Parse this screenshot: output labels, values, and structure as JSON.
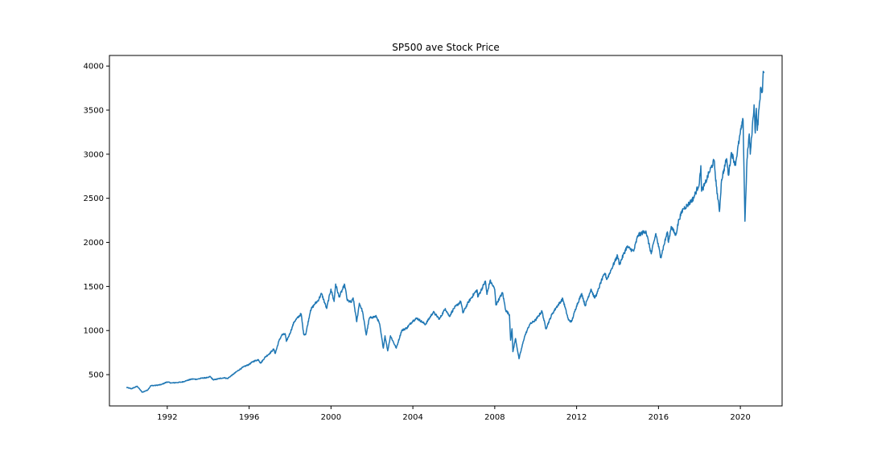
{
  "chart_data": {
    "type": "line",
    "title": "SP500 ave Stock Price",
    "xlabel": "",
    "ylabel": "",
    "xlim": [
      "1989-03-05",
      "2022-01-15"
    ],
    "ylim": [
      145,
      4120
    ],
    "x_ticks": [
      "1992",
      "1996",
      "2000",
      "2004",
      "2008",
      "2012",
      "2016",
      "2020"
    ],
    "y_ticks": [
      500,
      1000,
      1500,
      2000,
      2500,
      3000,
      3500,
      4000
    ],
    "grid": false,
    "legend": "none",
    "colors": {
      "line": "#1f77b4",
      "axes": "#000000",
      "background": "#ffffff"
    },
    "series": [
      {
        "x": [
          "1990-01-02",
          "1990-04-01",
          "1990-07-15",
          "1990-10-11",
          "1991-01-15",
          "1991-03-15",
          "1991-06-15",
          "1991-09-15",
          "1991-12-30",
          "1992-03-15",
          "1992-06-15",
          "1992-09-15",
          "1992-12-31",
          "1993-03-15",
          "1993-06-15",
          "1993-09-15",
          "1993-12-31",
          "1994-02-01",
          "1994-04-04",
          "1994-07-15",
          "1994-10-15",
          "1994-12-09",
          "1995-03-15",
          "1995-06-15",
          "1995-09-15",
          "1995-12-31",
          "1996-03-15",
          "1996-06-15",
          "1996-07-24",
          "1996-10-15",
          "1996-12-31",
          "1997-03-15",
          "1997-04-11",
          "1997-06-15",
          "1997-08-06",
          "1997-10-07",
          "1997-10-27",
          "1997-12-31",
          "1998-03-15",
          "1998-07-17",
          "1998-08-31",
          "1998-10-08",
          "1998-12-31",
          "1999-03-15",
          "1999-05-15",
          "1999-07-16",
          "1999-10-15",
          "1999-12-31",
          "2000-02-25",
          "2000-03-24",
          "2000-05-24",
          "2000-09-01",
          "2000-10-18",
          "2000-12-31",
          "2001-01-30",
          "2001-04-04",
          "2001-05-21",
          "2001-07-15",
          "2001-09-21",
          "2001-11-15",
          "2001-12-31",
          "2002-03-19",
          "2002-05-15",
          "2002-07-23",
          "2002-08-22",
          "2002-10-09",
          "2002-11-27",
          "2003-03-11",
          "2003-06-15",
          "2003-09-15",
          "2003-12-31",
          "2004-03-15",
          "2004-08-12",
          "2004-12-31",
          "2005-04-20",
          "2005-08-01",
          "2005-10-13",
          "2005-12-31",
          "2006-05-05",
          "2006-06-13",
          "2006-09-15",
          "2006-12-31",
          "2007-02-20",
          "2007-03-05",
          "2007-07-19",
          "2007-08-15",
          "2007-10-09",
          "2007-12-31",
          "2008-01-22",
          "2008-05-19",
          "2008-07-15",
          "2008-09-19",
          "2008-10-10",
          "2008-11-04",
          "2008-11-20",
          "2009-01-06",
          "2009-03-09",
          "2009-06-15",
          "2009-09-15",
          "2009-12-31",
          "2010-04-23",
          "2010-07-02",
          "2010-10-15",
          "2010-12-31",
          "2011-04-29",
          "2011-08-08",
          "2011-10-03",
          "2011-12-31",
          "2012-04-02",
          "2012-06-01",
          "2012-09-14",
          "2012-11-15",
          "2012-12-31",
          "2013-03-15",
          "2013-05-21",
          "2013-06-24",
          "2013-09-15",
          "2013-12-31",
          "2014-02-03",
          "2014-06-15",
          "2014-10-15",
          "2014-12-31",
          "2015-05-21",
          "2015-08-25",
          "2015-11-15",
          "2016-02-11",
          "2016-06-08",
          "2016-06-27",
          "2016-08-15",
          "2016-11-04",
          "2016-12-31",
          "2017-03-15",
          "2017-06-15",
          "2017-09-15",
          "2017-12-31",
          "2018-01-26",
          "2018-02-08",
          "2018-04-15",
          "2018-06-15",
          "2018-09-20",
          "2018-10-29",
          "2018-12-24",
          "2019-01-31",
          "2019-04-30",
          "2019-06-03",
          "2019-07-26",
          "2019-10-03",
          "2019-12-31",
          "2020-02-19",
          "2020-03-23",
          "2020-04-29",
          "2020-06-08",
          "2020-06-26",
          "2020-09-02",
          "2020-09-23",
          "2020-10-12",
          "2020-10-30",
          "2020-12-31",
          "2021-01-29",
          "2021-02-12",
          "2021-02-26"
        ],
        "y": [
          355,
          340,
          368,
          300,
          325,
          375,
          378,
          387,
          417,
          405,
          410,
          415,
          436,
          450,
          448,
          461,
          466,
          480,
          440,
          455,
          465,
          455,
          500,
          545,
          585,
          616,
          650,
          670,
          630,
          700,
          740,
          790,
          740,
          880,
          950,
          960,
          877,
          970,
          1100,
          1190,
          960,
          960,
          1230,
          1300,
          1340,
          1420,
          1250,
          1470,
          1330,
          1527,
          1380,
          1520,
          1340,
          1320,
          1370,
          1100,
          1310,
          1220,
          950,
          1140,
          1150,
          1160,
          1080,
          800,
          940,
          770,
          940,
          800,
          1000,
          1030,
          1110,
          1140,
          1070,
          1210,
          1130,
          1250,
          1160,
          1250,
          1330,
          1200,
          1320,
          1420,
          1460,
          1380,
          1560,
          1410,
          1565,
          1470,
          1290,
          1430,
          1230,
          1180,
          890,
          1020,
          760,
          910,
          680,
          930,
          1070,
          1120,
          1220,
          1020,
          1180,
          1260,
          1360,
          1120,
          1100,
          1280,
          1420,
          1280,
          1470,
          1370,
          1420,
          1560,
          1650,
          1580,
          1700,
          1850,
          1750,
          1950,
          1900,
          2080,
          2130,
          1870,
          2100,
          1830,
          2120,
          2000,
          2180,
          2080,
          2260,
          2380,
          2430,
          2500,
          2670,
          2870,
          2580,
          2670,
          2780,
          2930,
          2640,
          2350,
          2710,
          2950,
          2760,
          3020,
          2880,
          3240,
          3390,
          2240,
          2940,
          3230,
          3000,
          3560,
          3240,
          3520,
          3270,
          3760,
          3710,
          3940,
          3920
        ]
      }
    ]
  }
}
